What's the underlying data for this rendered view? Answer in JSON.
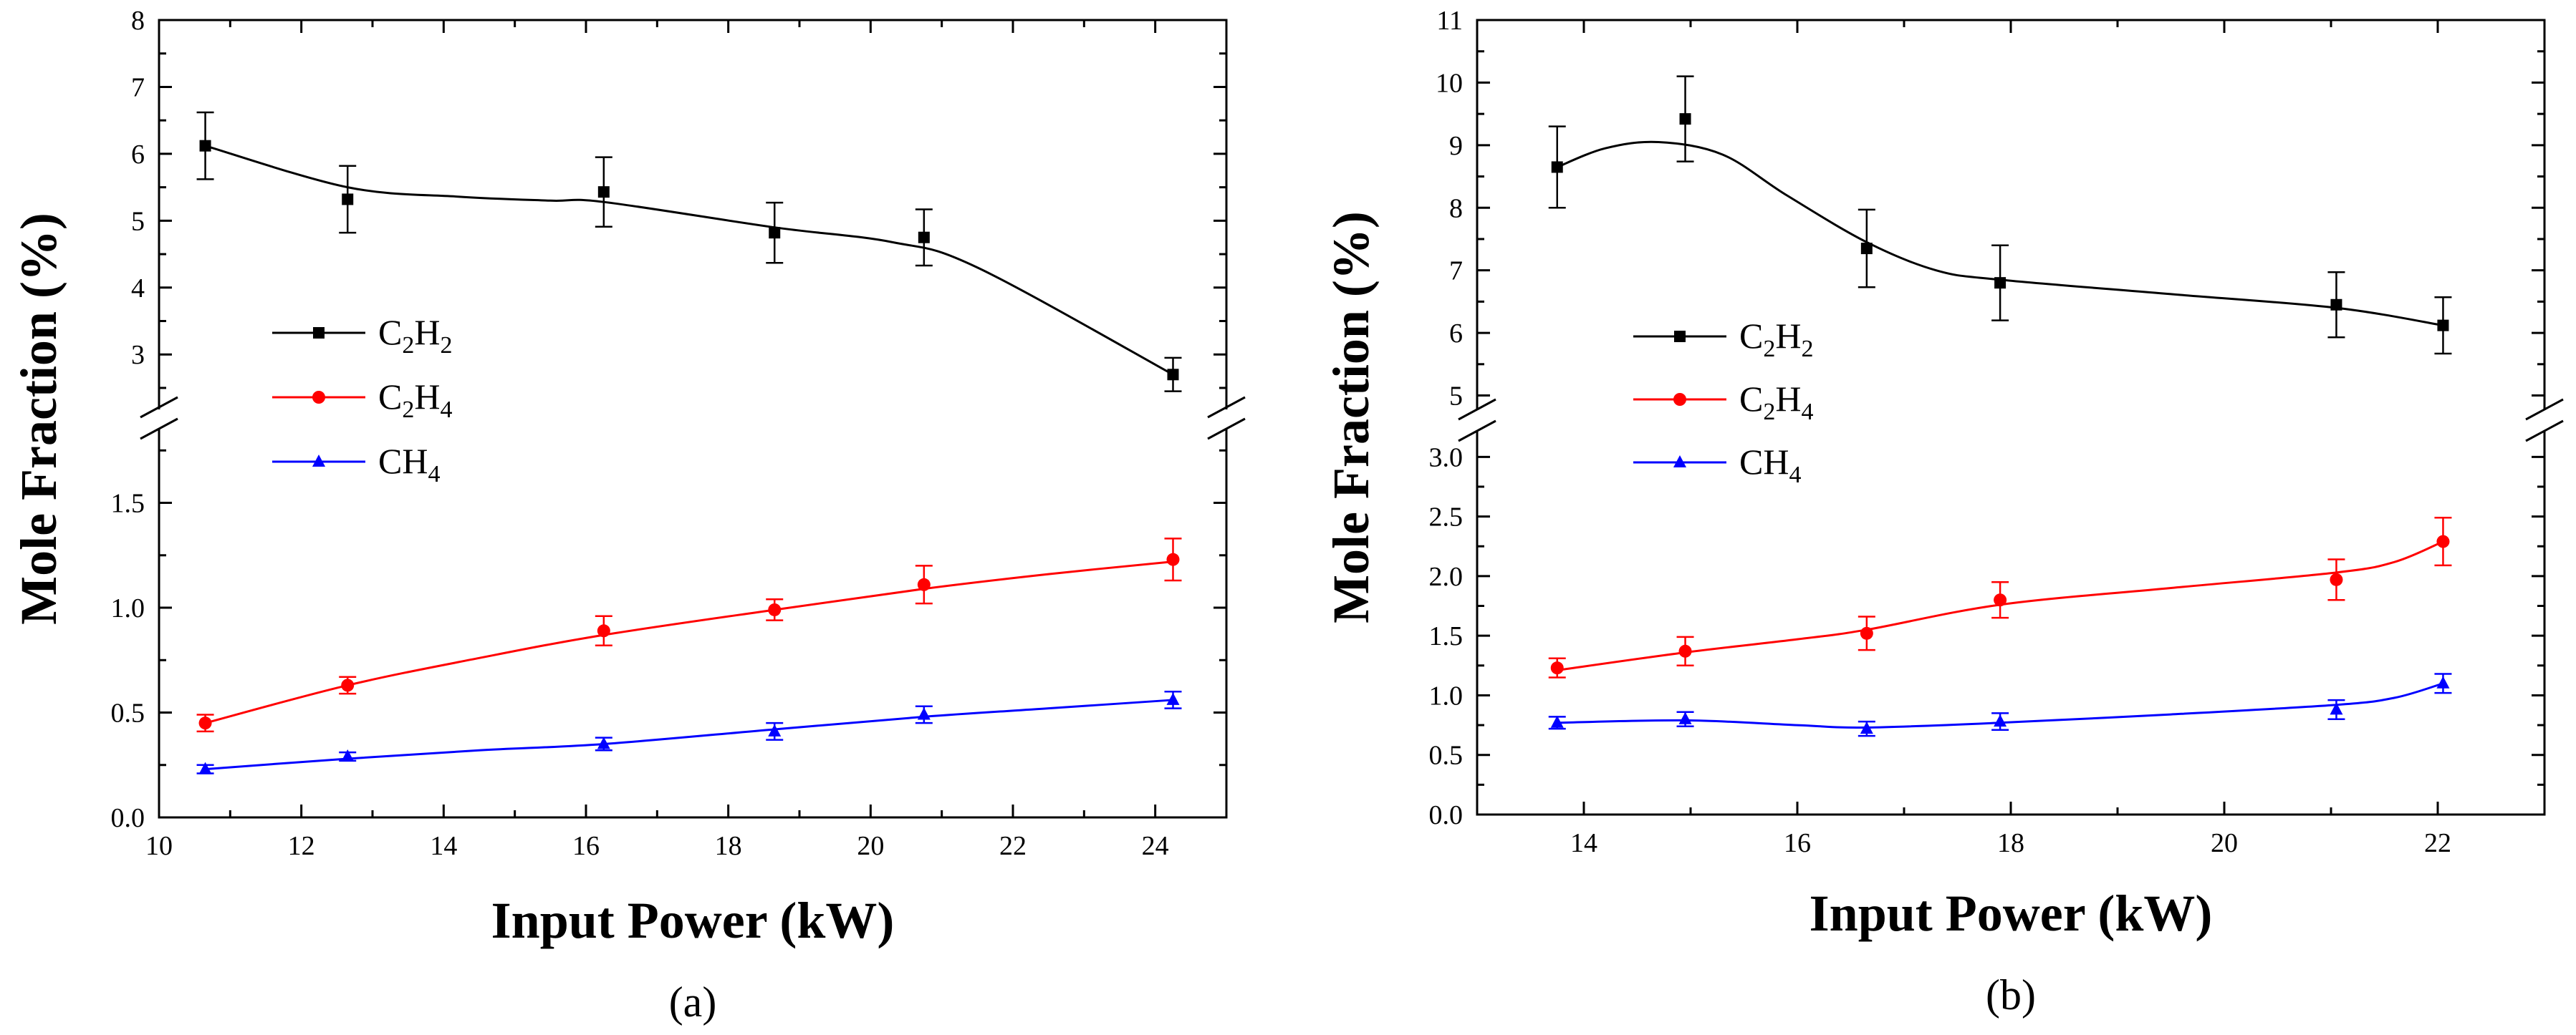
{
  "chart_data": [
    {
      "type": "line",
      "panel_label": "(a)",
      "xlabel": "Input Power (kW)",
      "ylabel": "Mole Fraction (%)",
      "xlim": [
        10,
        25
      ],
      "xticks": [
        "10",
        "12",
        "14",
        "16",
        "18",
        "20",
        "22",
        "24"
      ],
      "axis_break": true,
      "upper_ylim": [
        2.2,
        8
      ],
      "upper_yticks": [
        "3",
        "4",
        "5",
        "6",
        "7",
        "8"
      ],
      "lower_ylim": [
        0,
        1.85
      ],
      "lower_yticks": [
        "0.0",
        "0.5",
        "1.0",
        "1.5"
      ],
      "legend_position": "center-left",
      "series": [
        {
          "name": "C2H2",
          "label_parts": [
            "C",
            "2",
            "H",
            "2"
          ],
          "axis": "upper",
          "color": "#000000",
          "marker": "square",
          "x": [
            10.65,
            12.65,
            16.25,
            18.65,
            20.75,
            24.25
          ],
          "y": [
            6.12,
            5.32,
            5.43,
            4.82,
            4.75,
            2.7
          ],
          "err": [
            0.5,
            0.5,
            0.52,
            0.45,
            0.42,
            0.25
          ],
          "curve_y": [
            6.12,
            5.5,
            5.36,
            5.3,
            5.28,
            4.9,
            4.68,
            4.3,
            2.7
          ],
          "curve_x": [
            10.65,
            12.65,
            14.2,
            15.5,
            16.25,
            18.65,
            20.3,
            21.5,
            24.25
          ]
        },
        {
          "name": "C2H4",
          "label_parts": [
            "C",
            "2",
            "H",
            "4"
          ],
          "axis": "lower",
          "color": "#ff0000",
          "marker": "circle",
          "x": [
            10.65,
            12.65,
            16.25,
            18.65,
            20.75,
            24.25
          ],
          "y": [
            0.45,
            0.63,
            0.89,
            0.99,
            1.11,
            1.23
          ],
          "err": [
            0.04,
            0.04,
            0.07,
            0.05,
            0.09,
            0.1
          ],
          "curve_x": [
            10.65,
            12.65,
            14.5,
            16.25,
            18.65,
            20.75,
            22.5,
            24.25
          ],
          "curve_y": [
            0.45,
            0.63,
            0.76,
            0.87,
            0.99,
            1.09,
            1.16,
            1.22
          ]
        },
        {
          "name": "CH4",
          "label_parts": [
            "CH",
            "4"
          ],
          "axis": "lower",
          "color": "#0000ff",
          "marker": "triangle",
          "x": [
            10.65,
            12.65,
            16.25,
            18.65,
            20.75,
            24.25
          ],
          "y": [
            0.23,
            0.29,
            0.35,
            0.41,
            0.49,
            0.56
          ],
          "err": [
            0.02,
            0.02,
            0.03,
            0.04,
            0.04,
            0.04
          ],
          "curve_x": [
            10.65,
            12.65,
            14.5,
            16.25,
            18.65,
            20.75,
            22.5,
            24.25
          ],
          "curve_y": [
            0.23,
            0.28,
            0.32,
            0.35,
            0.42,
            0.48,
            0.52,
            0.56
          ]
        }
      ]
    },
    {
      "type": "line",
      "panel_label": "(b)",
      "xlabel": "Input Power (kW)",
      "ylabel": "Mole Fraction (%)",
      "xlim": [
        13,
        23
      ],
      "xticks": [
        "14",
        "16",
        "18",
        "20",
        "22"
      ],
      "axis_break": true,
      "upper_ylim": [
        4.8,
        11
      ],
      "upper_yticks": [
        "5",
        "6",
        "7",
        "8",
        "9",
        "10",
        "11"
      ],
      "lower_ylim": [
        0,
        3.2
      ],
      "lower_yticks": [
        "0.0",
        "0.5",
        "1.0",
        "1.5",
        "2.0",
        "2.5",
        "3.0"
      ],
      "legend_position": "center-right",
      "series": [
        {
          "name": "C2H2",
          "label_parts": [
            "C",
            "2",
            "H",
            "2"
          ],
          "axis": "upper",
          "color": "#000000",
          "marker": "square",
          "x": [
            13.75,
            14.95,
            16.65,
            17.9,
            21.05,
            22.05
          ],
          "y": [
            8.65,
            9.42,
            7.35,
            6.8,
            6.45,
            6.12
          ],
          "err": [
            0.65,
            0.68,
            0.62,
            0.6,
            0.52,
            0.45
          ],
          "curve_x": [
            13.75,
            14.2,
            14.7,
            15.3,
            15.9,
            16.65,
            17.3,
            17.9,
            19.5,
            21.05,
            22.05
          ],
          "curve_y": [
            8.65,
            8.95,
            9.05,
            8.85,
            8.2,
            7.45,
            7.0,
            6.85,
            6.62,
            6.4,
            6.12
          ]
        },
        {
          "name": "C2H4",
          "label_parts": [
            "C",
            "2",
            "H",
            "4"
          ],
          "axis": "lower",
          "color": "#ff0000",
          "marker": "circle",
          "x": [
            13.75,
            14.95,
            16.65,
            17.9,
            21.05,
            22.05
          ],
          "y": [
            1.23,
            1.37,
            1.52,
            1.8,
            1.97,
            2.29
          ],
          "err": [
            0.08,
            0.12,
            0.14,
            0.15,
            0.17,
            0.2
          ],
          "curve_x": [
            13.75,
            14.95,
            16.0,
            16.65,
            17.9,
            19.5,
            21.05,
            21.6,
            22.05
          ],
          "curve_y": [
            1.21,
            1.36,
            1.47,
            1.55,
            1.76,
            1.9,
            2.03,
            2.12,
            2.29
          ]
        },
        {
          "name": "CH4",
          "label_parts": [
            "CH",
            "4"
          ],
          "axis": "lower",
          "color": "#0000ff",
          "marker": "triangle",
          "x": [
            13.75,
            14.95,
            16.65,
            17.9,
            21.05,
            22.05
          ],
          "y": [
            0.77,
            0.8,
            0.72,
            0.78,
            0.88,
            1.1
          ],
          "err": [
            0.05,
            0.06,
            0.06,
            0.07,
            0.08,
            0.08
          ],
          "curve_x": [
            13.75,
            14.95,
            16.0,
            16.65,
            17.9,
            19.5,
            21.05,
            21.6,
            22.05
          ],
          "curve_y": [
            0.77,
            0.79,
            0.75,
            0.73,
            0.77,
            0.84,
            0.92,
            0.98,
            1.1
          ]
        }
      ]
    }
  ]
}
